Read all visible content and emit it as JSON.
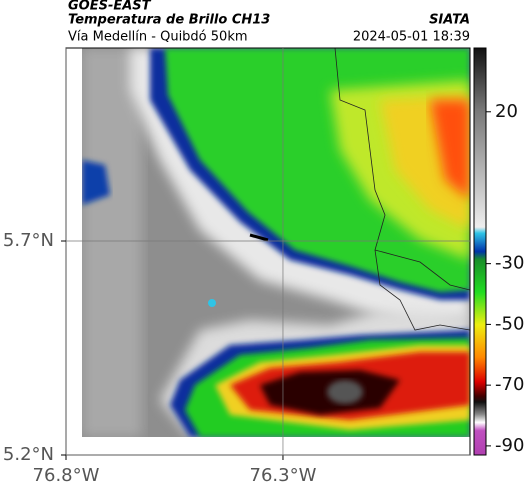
{
  "header": {
    "title": "GOES-EAST",
    "subtitle": "Temperatura de Brillo CH13",
    "source": "SIATA",
    "route": "Vía Medellín - Quibdó 50km",
    "timestamp": "2024-05-01 18:39"
  },
  "map": {
    "xlim": [
      -76.8,
      -75.869
    ],
    "ylim": [
      5.2,
      6.151
    ],
    "xticks": [
      {
        "value": -76.8,
        "label": "76.8°W"
      },
      {
        "value": -76.3,
        "label": "76.3°W"
      }
    ],
    "yticks": [
      {
        "value": 5.2,
        "label": "5.2°N"
      },
      {
        "value": 5.7,
        "label": "5.7°N"
      }
    ],
    "grid": true
  },
  "colorbar": {
    "lim": [
      -93,
      41
    ],
    "ticks": [
      20,
      -30,
      -50,
      -70,
      -90
    ]
  }
}
